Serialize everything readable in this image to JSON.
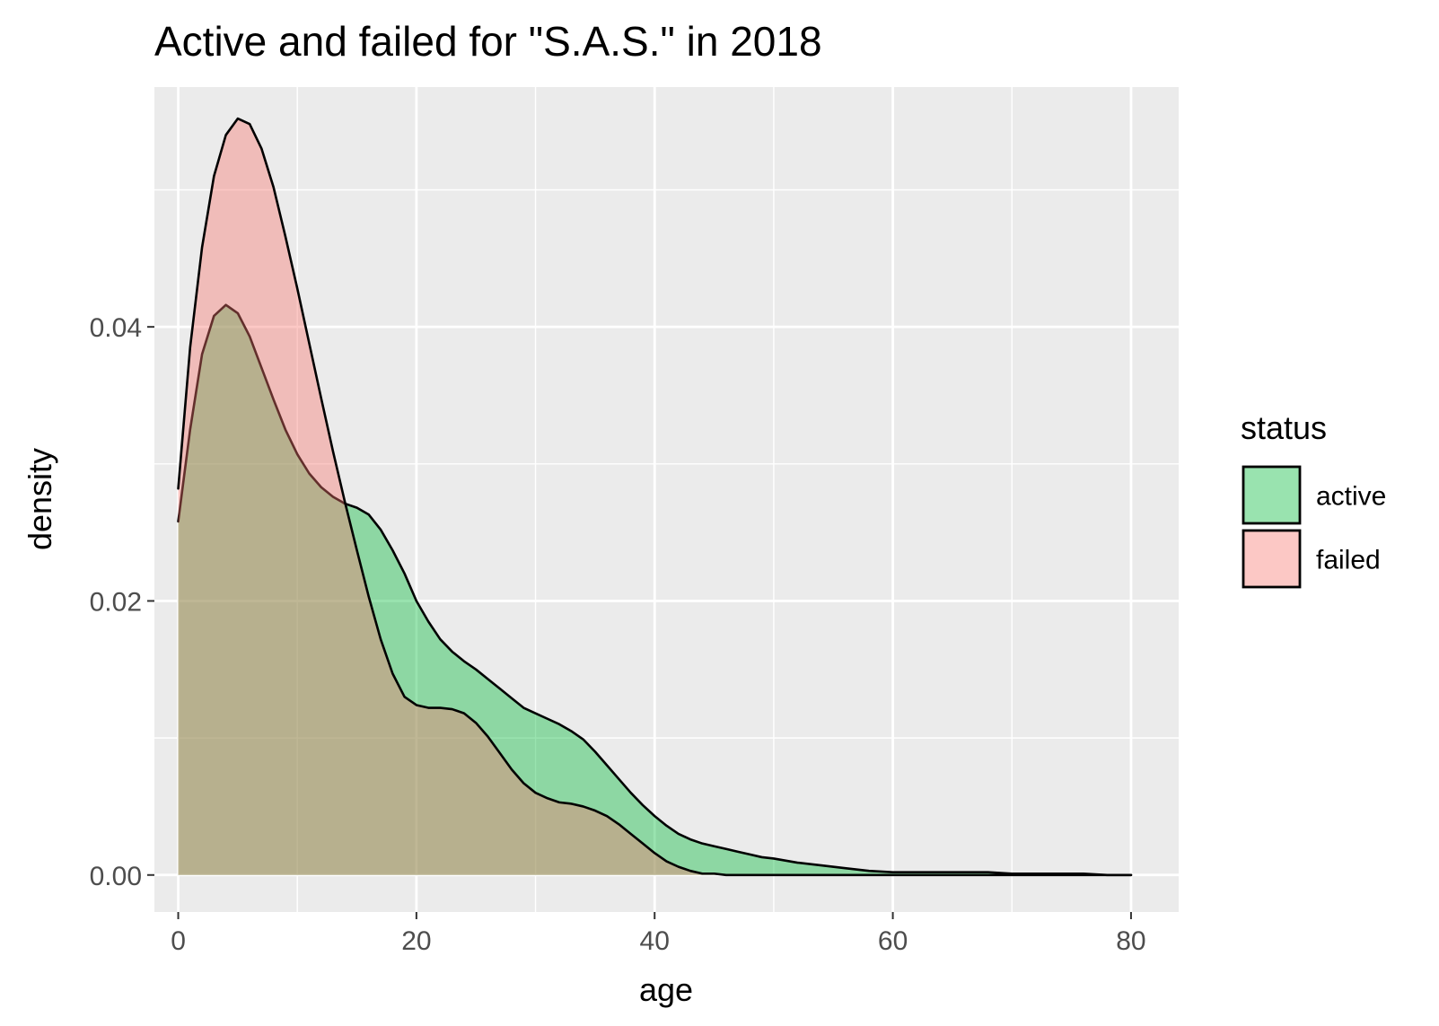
{
  "chart_data": {
    "type": "area",
    "title": "Active and failed for \"S.A.S.\" in 2018",
    "xlabel": "age",
    "ylabel": "density",
    "xlim": [
      -2,
      84
    ],
    "ylim": [
      -0.0027,
      0.0575
    ],
    "x_ticks": [
      0,
      20,
      40,
      60,
      80
    ],
    "x_tick_labels": [
      "0",
      "20",
      "40",
      "60",
      "80"
    ],
    "y_ticks": [
      0,
      0.02,
      0.04
    ],
    "y_tick_labels": [
      "0.00",
      "0.02",
      "0.04"
    ],
    "x_minor_ticks": [
      10,
      30,
      50,
      70
    ],
    "y_minor_ticks": [
      0.01,
      0.03,
      0.05
    ],
    "grid": true,
    "legend": {
      "title": "status",
      "position": "right"
    },
    "series": [
      {
        "name": "active",
        "color": "#00BA38",
        "fill_opacity": 0.4,
        "x": [
          0,
          1,
          2,
          3,
          4,
          5,
          6,
          7,
          8,
          9,
          10,
          11,
          12,
          13,
          14,
          15,
          16,
          17,
          18,
          19,
          20,
          21,
          22,
          23,
          24,
          25,
          26,
          27,
          28,
          29,
          30,
          31,
          32,
          33,
          34,
          35,
          36,
          37,
          38,
          39,
          40,
          41,
          42,
          43,
          44,
          45,
          46,
          47,
          48,
          49,
          50,
          52,
          54,
          56,
          58,
          60,
          62,
          64,
          66,
          68,
          70,
          72,
          74,
          76,
          78,
          80
        ],
        "y": [
          0.0258,
          0.0325,
          0.038,
          0.0408,
          0.0416,
          0.041,
          0.0393,
          0.037,
          0.0347,
          0.0325,
          0.0307,
          0.0293,
          0.0283,
          0.0276,
          0.0271,
          0.0268,
          0.0263,
          0.0252,
          0.0237,
          0.022,
          0.02,
          0.0185,
          0.0172,
          0.0163,
          0.0156,
          0.015,
          0.0143,
          0.0136,
          0.0129,
          0.0122,
          0.0118,
          0.0114,
          0.011,
          0.0105,
          0.0099,
          0.009,
          0.008,
          0.007,
          0.006,
          0.0051,
          0.0043,
          0.0036,
          0.003,
          0.0026,
          0.0023,
          0.0021,
          0.0019,
          0.0017,
          0.0015,
          0.0013,
          0.0012,
          0.0009,
          0.0007,
          0.0005,
          0.0003,
          0.0002,
          0.0002,
          0.0002,
          0.0002,
          0.0002,
          0.0001,
          0.0001,
          0.0001,
          0.0001,
          0.0,
          0.0
        ]
      },
      {
        "name": "failed",
        "color": "#F8766D",
        "fill_opacity": 0.4,
        "x": [
          0,
          1,
          2,
          3,
          4,
          5,
          6,
          7,
          8,
          9,
          10,
          11,
          12,
          13,
          14,
          15,
          16,
          17,
          18,
          19,
          20,
          21,
          22,
          23,
          24,
          25,
          26,
          27,
          28,
          29,
          30,
          31,
          32,
          33,
          34,
          35,
          36,
          37,
          38,
          39,
          40,
          41,
          42,
          43,
          44,
          45,
          46,
          47,
          48,
          49,
          50,
          52,
          54,
          56,
          58,
          60,
          62,
          64,
          66,
          68,
          70,
          72,
          74,
          76,
          78,
          80
        ],
        "y": [
          0.0282,
          0.0385,
          0.0458,
          0.051,
          0.054,
          0.0552,
          0.0548,
          0.053,
          0.0502,
          0.0466,
          0.0428,
          0.0388,
          0.0348,
          0.0309,
          0.0272,
          0.0237,
          0.0203,
          0.0172,
          0.0147,
          0.013,
          0.0124,
          0.0122,
          0.0122,
          0.0121,
          0.0118,
          0.0111,
          0.0101,
          0.0089,
          0.0077,
          0.0067,
          0.006,
          0.0056,
          0.0053,
          0.0052,
          0.005,
          0.0047,
          0.0043,
          0.0037,
          0.003,
          0.0023,
          0.0016,
          0.001,
          0.0006,
          0.0003,
          0.0001,
          0.0001,
          0.0,
          0.0,
          0.0,
          0.0,
          0.0,
          0.0,
          0.0,
          0.0,
          0.0,
          0.0,
          0.0,
          0.0,
          0.0,
          0.0,
          0.0,
          0.0,
          0.0,
          0.0,
          0.0,
          0.0
        ]
      }
    ]
  }
}
